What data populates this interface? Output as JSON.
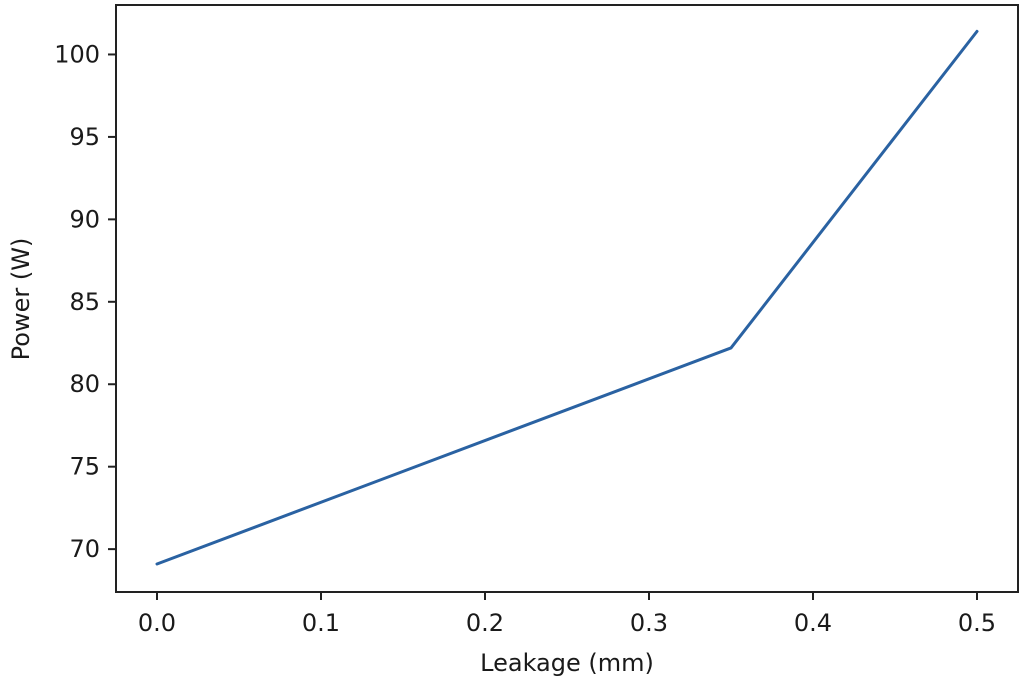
{
  "chart_data": {
    "type": "line",
    "title": "",
    "xlabel": "Leakage (mm)",
    "ylabel": "Power (W)",
    "xlim": [
      -0.025,
      0.525
    ],
    "ylim": [
      67.4,
      103.0
    ],
    "xticks": [
      0.0,
      0.1,
      0.2,
      0.3,
      0.4,
      0.5
    ],
    "xtick_labels": [
      "0.0",
      "0.1",
      "0.2",
      "0.3",
      "0.4",
      "0.5"
    ],
    "yticks": [
      70,
      75,
      80,
      85,
      90,
      95,
      100
    ],
    "ytick_labels": [
      "70",
      "75",
      "80",
      "85",
      "90",
      "95",
      "100"
    ],
    "grid": false,
    "legend": "none",
    "series": [
      {
        "color": "#2a62a2",
        "x": [
          0.0,
          0.35,
          0.5
        ],
        "y": [
          69.1,
          82.2,
          101.4
        ]
      }
    ]
  }
}
